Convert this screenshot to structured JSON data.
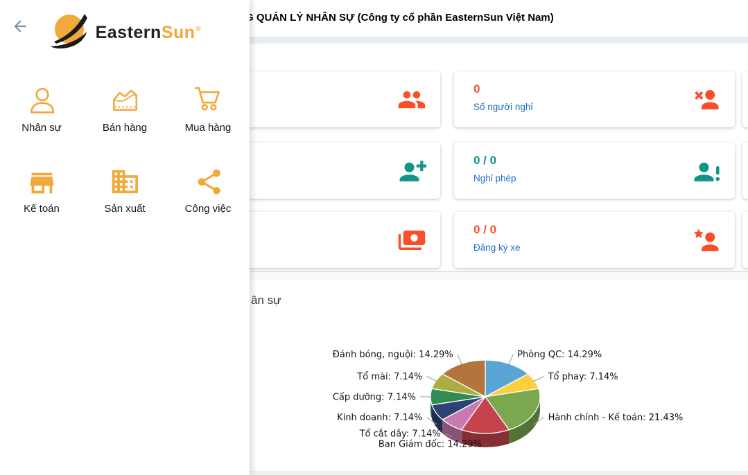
{
  "header": {
    "title": "G QUẢN LÝ NHÂN SỰ (Công ty cổ phần EasternSun Việt Nam)"
  },
  "sidebar": {
    "back_icon": "arrow-left-icon",
    "logo": {
      "mark_icon": "sun-swoosh-icon",
      "text_primary": "Eastern",
      "text_accent": "Sun",
      "registered_mark": "®"
    },
    "accent_color": "#f2a93c",
    "menu": [
      {
        "id": "nhan-su",
        "label": "Nhân sự",
        "icon": "person-icon"
      },
      {
        "id": "ban-hang",
        "label": "Bán hàng",
        "icon": "sales-chart-icon"
      },
      {
        "id": "mua-hang",
        "label": "Mua hàng",
        "icon": "cart-icon"
      },
      {
        "id": "ke-toan",
        "label": "Kế toán",
        "icon": "store-icon"
      },
      {
        "id": "san-xuat",
        "label": "Sản xuất",
        "icon": "factory-icon"
      },
      {
        "id": "cong-viec",
        "label": "Công việc",
        "icon": "share-icon"
      }
    ]
  },
  "colors": {
    "red": "#fb4e28",
    "teal": "#0f9688",
    "blue_label": "#1c6fc5"
  },
  "stats": {
    "rows": [
      {
        "left_card": {
          "icon": "people-icon",
          "color": "#fb4e28"
        },
        "right_card": {
          "value": "0",
          "value_color": "#fb4e28",
          "label": "Số người nghỉ",
          "icon": "person-remove-icon",
          "color": "#fb4e28"
        }
      },
      {
        "left_card": {
          "icon": "person-add-icon",
          "color": "#0f9688"
        },
        "right_card": {
          "value": "0 / 0",
          "value_color": "#0f9688",
          "label": "Nghỉ phép",
          "icon": "person-alert-icon",
          "color": "#0f9688"
        }
      },
      {
        "left_card": {
          "icon": "banknote-icon",
          "color": "#fb4e28"
        },
        "right_card": {
          "value": "0 / 0",
          "value_color": "#fb4e28",
          "label": "Đăng ký xe",
          "icon": "person-star-icon",
          "color": "#fb4e28"
        }
      }
    ]
  },
  "section": {
    "heading_visible": "ân sự"
  },
  "chart_data": {
    "type": "pie",
    "style": "3d",
    "legend": "callout-labels",
    "direction": "clockwise",
    "start_angle_deg": 0,
    "label_format": "{label}: {value}%",
    "labels": [
      "Phòng QC",
      "Tổ phay",
      "Hành chính - Kế toán",
      "Ban Giám đốc",
      "Tổ cắt dây",
      "Kinh doanh",
      "Cấp dưỡng",
      "Tổ mài",
      "Đánh bóng, nguội"
    ],
    "values": [
      14.29,
      7.14,
      21.43,
      14.29,
      7.14,
      7.14,
      7.14,
      7.14,
      14.29
    ],
    "colors": [
      "#5aa5d6",
      "#fccf3f",
      "#7aa84f",
      "#c4434d",
      "#c87ab0",
      "#2e4372",
      "#318c52",
      "#abad3f",
      "#b4743c"
    ]
  }
}
